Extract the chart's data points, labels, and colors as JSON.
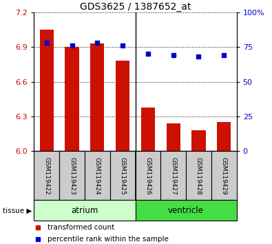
{
  "title": "GDS3625 / 1387652_at",
  "samples": [
    "GSM119422",
    "GSM119423",
    "GSM119424",
    "GSM119425",
    "GSM119426",
    "GSM119427",
    "GSM119428",
    "GSM119429"
  ],
  "transformed_counts": [
    7.05,
    6.9,
    6.93,
    6.78,
    6.38,
    6.24,
    6.18,
    6.25
  ],
  "percentile_ranks": [
    78,
    76,
    78,
    76,
    70,
    69,
    68,
    69
  ],
  "ylim_left": [
    6.0,
    7.2
  ],
  "ylim_right": [
    0,
    100
  ],
  "yticks_left": [
    6.0,
    6.3,
    6.6,
    6.9,
    7.2
  ],
  "yticks_right": [
    0,
    25,
    50,
    75,
    100
  ],
  "bar_color": "#cc1100",
  "dot_color": "#0000cc",
  "tissue_groups": [
    {
      "label": "atrium",
      "start": 0,
      "end": 4,
      "color": "#ccffcc"
    },
    {
      "label": "ventricle",
      "start": 4,
      "end": 8,
      "color": "#44dd44"
    }
  ],
  "legend_items": [
    {
      "label": "transformed count",
      "color": "#cc1100"
    },
    {
      "label": "percentile rank within the sample",
      "color": "#0000cc"
    }
  ],
  "bar_color_label": "#cc0000",
  "right_axis_color": "#0000cc",
  "bar_width": 0.55,
  "base_value": 6.0,
  "label_box_color": "#cccccc",
  "divider_col": 3.5
}
